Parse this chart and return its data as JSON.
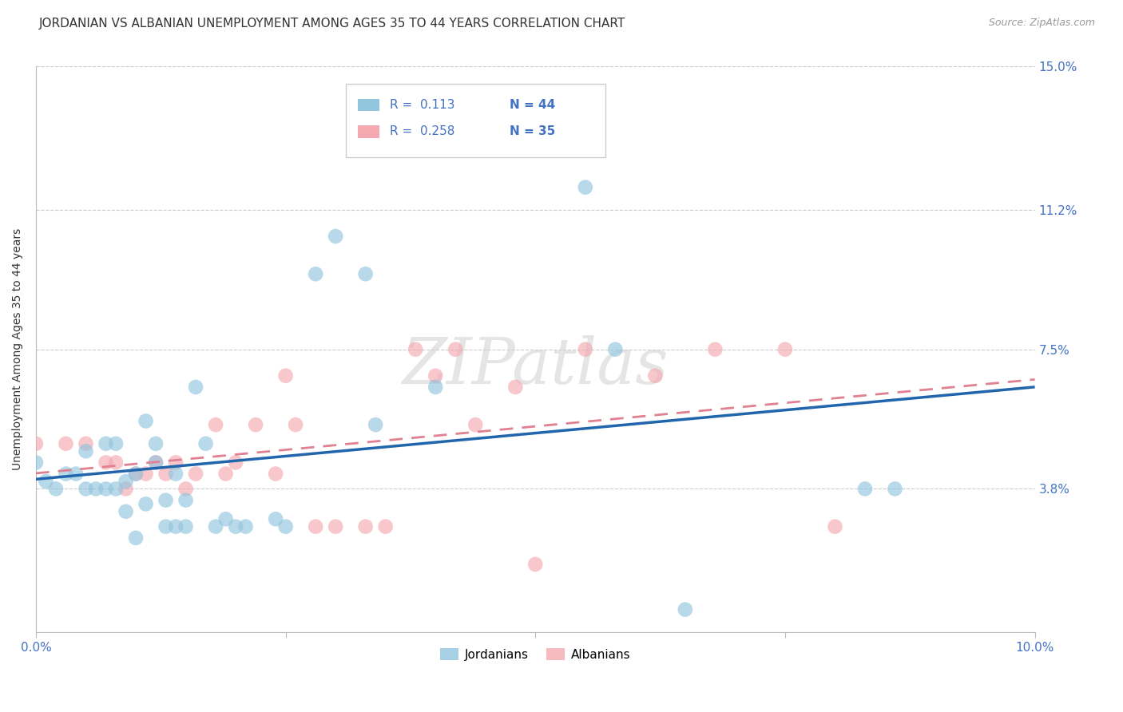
{
  "title": "JORDANIAN VS ALBANIAN UNEMPLOYMENT AMONG AGES 35 TO 44 YEARS CORRELATION CHART",
  "source": "Source: ZipAtlas.com",
  "ylabel": "Unemployment Among Ages 35 to 44 years",
  "xlim": [
    0.0,
    0.1
  ],
  "ylim": [
    0.0,
    0.15
  ],
  "yticks": [
    0.0,
    0.038,
    0.075,
    0.112,
    0.15
  ],
  "ytick_labels": [
    "",
    "3.8%",
    "7.5%",
    "11.2%",
    "15.0%"
  ],
  "xticks": [
    0.0,
    0.025,
    0.05,
    0.075,
    0.1
  ],
  "xtick_labels": [
    "0.0%",
    "",
    "",
    "",
    "10.0%"
  ],
  "color_jordanian": "#92C5DE",
  "color_albanian": "#F4A9B0",
  "color_jordanian_line": "#2166AC",
  "color_albanian_line": "#E08090",
  "watermark": "ZIPatlas",
  "jordanian_x": [
    0.0,
    0.001,
    0.002,
    0.003,
    0.004,
    0.005,
    0.005,
    0.006,
    0.007,
    0.007,
    0.008,
    0.008,
    0.009,
    0.009,
    0.01,
    0.01,
    0.011,
    0.011,
    0.012,
    0.012,
    0.013,
    0.013,
    0.014,
    0.014,
    0.015,
    0.015,
    0.016,
    0.017,
    0.018,
    0.019,
    0.02,
    0.021,
    0.024,
    0.025,
    0.028,
    0.03,
    0.033,
    0.034,
    0.04,
    0.055,
    0.058,
    0.065,
    0.083,
    0.086
  ],
  "jordanian_y": [
    0.045,
    0.04,
    0.038,
    0.042,
    0.042,
    0.038,
    0.048,
    0.038,
    0.05,
    0.038,
    0.05,
    0.038,
    0.04,
    0.032,
    0.025,
    0.042,
    0.034,
    0.056,
    0.045,
    0.05,
    0.028,
    0.035,
    0.028,
    0.042,
    0.028,
    0.035,
    0.065,
    0.05,
    0.028,
    0.03,
    0.028,
    0.028,
    0.03,
    0.028,
    0.095,
    0.105,
    0.095,
    0.055,
    0.065,
    0.118,
    0.075,
    0.006,
    0.038,
    0.038
  ],
  "albanian_x": [
    0.0,
    0.003,
    0.005,
    0.007,
    0.008,
    0.009,
    0.01,
    0.011,
    0.012,
    0.013,
    0.014,
    0.015,
    0.016,
    0.018,
    0.019,
    0.02,
    0.022,
    0.024,
    0.025,
    0.026,
    0.028,
    0.03,
    0.033,
    0.035,
    0.038,
    0.04,
    0.042,
    0.044,
    0.048,
    0.05,
    0.055,
    0.062,
    0.068,
    0.075,
    0.08
  ],
  "albanian_y": [
    0.05,
    0.05,
    0.05,
    0.045,
    0.045,
    0.038,
    0.042,
    0.042,
    0.045,
    0.042,
    0.045,
    0.038,
    0.042,
    0.055,
    0.042,
    0.045,
    0.055,
    0.042,
    0.068,
    0.055,
    0.028,
    0.028,
    0.028,
    0.028,
    0.075,
    0.068,
    0.075,
    0.055,
    0.065,
    0.018,
    0.075,
    0.068,
    0.075,
    0.075,
    0.028
  ],
  "title_fontsize": 11,
  "axis_label_fontsize": 10,
  "tick_fontsize": 11,
  "dot_size": 180,
  "legend_R1": "R =  0.113",
  "legend_N1": "N = 44",
  "legend_R2": "R =  0.258",
  "legend_N2": "N = 35"
}
